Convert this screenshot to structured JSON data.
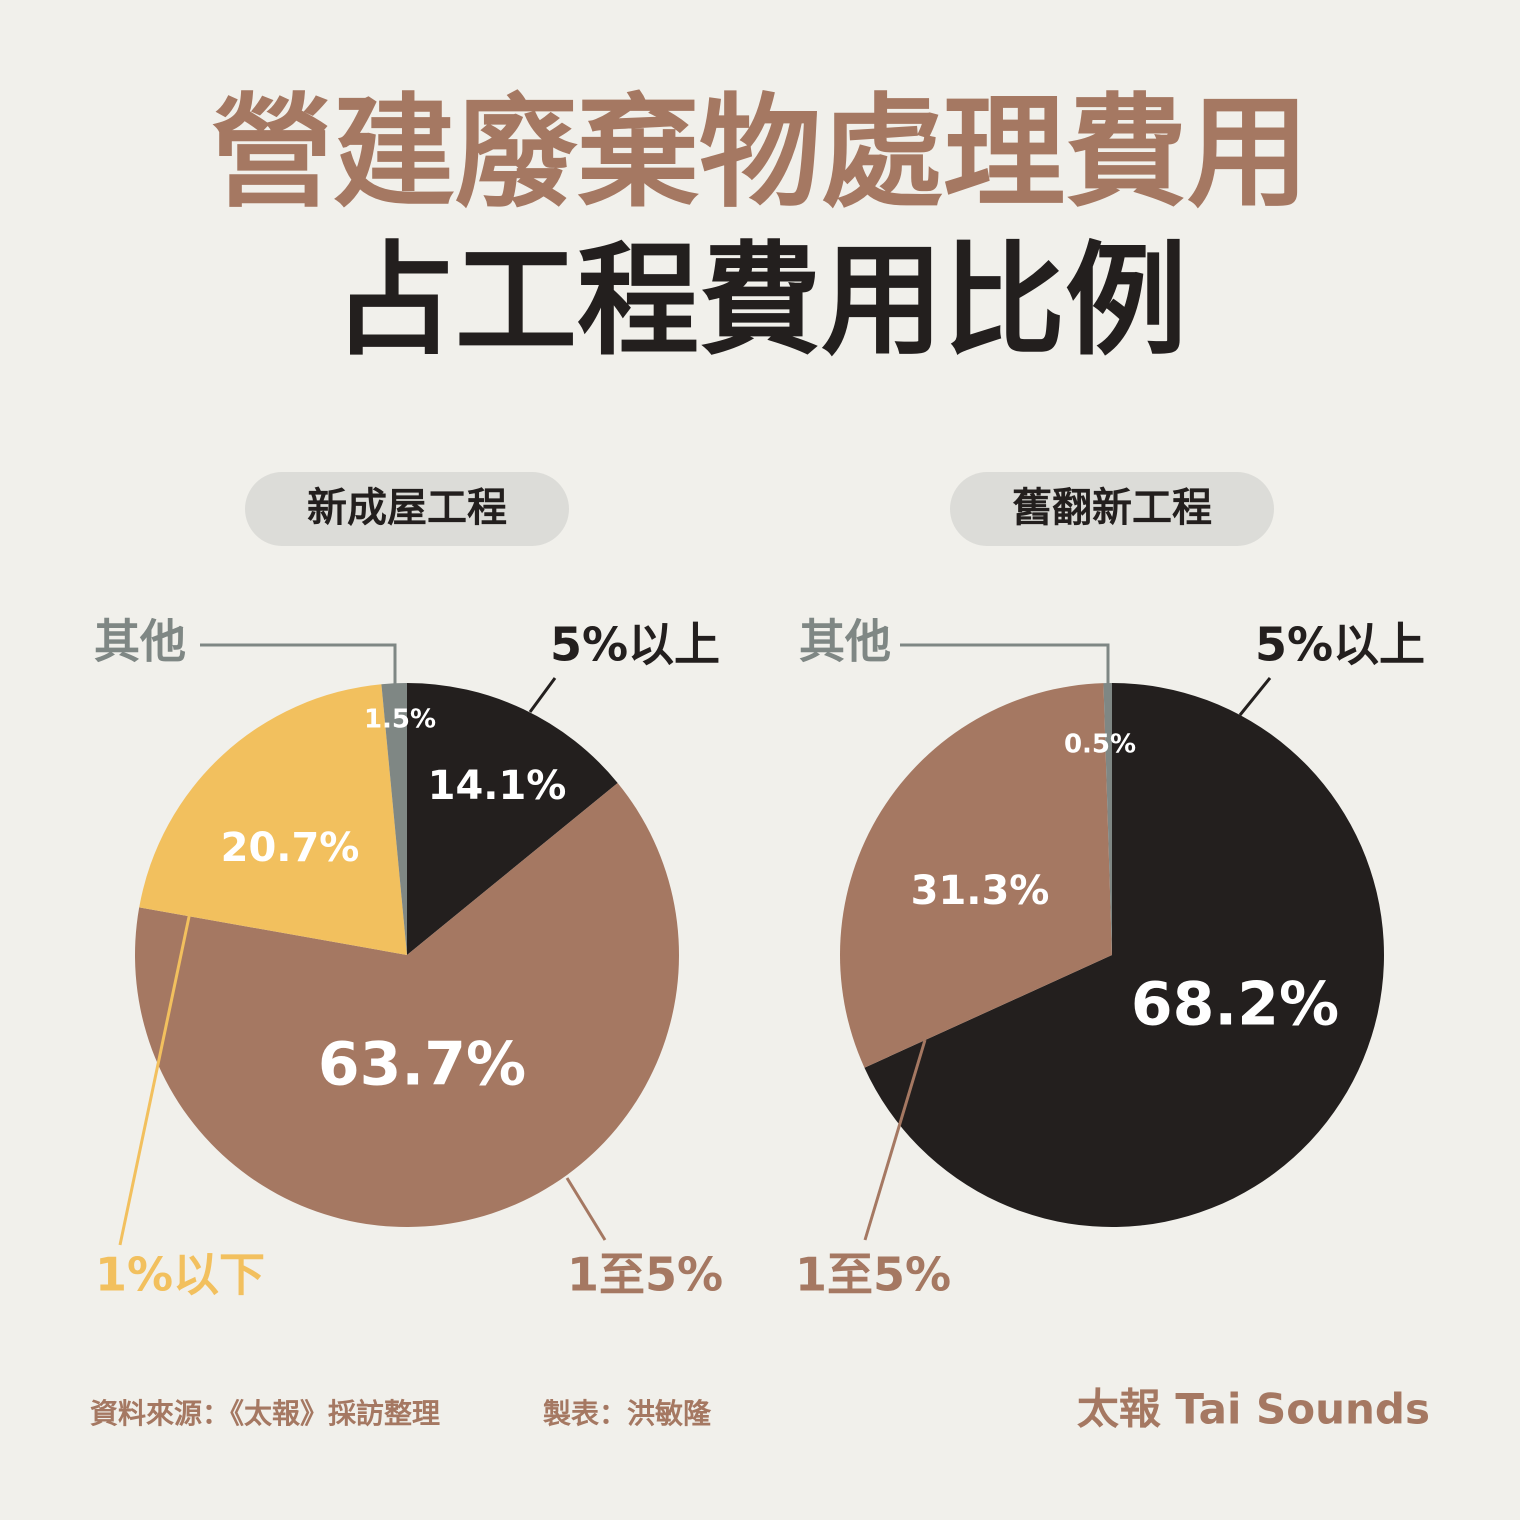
{
  "title": [
    "營建廢棄物處理費用",
    "占工程費用比例"
  ],
  "chart_data": [
    {
      "type": "pie",
      "title": "新成屋工程",
      "categories": [
        "5%以上",
        "1至5%",
        "1%以下",
        "其他"
      ],
      "values": [
        14.1,
        63.7,
        20.7,
        1.5
      ],
      "value_labels": [
        "14.1%",
        "63.7%",
        "20.7%",
        "1.5%"
      ],
      "colors": [
        "#231f1e",
        "#a57862",
        "#f2c05e",
        "#7f8784"
      ]
    },
    {
      "type": "pie",
      "title": "舊翻新工程",
      "categories": [
        "5%以上",
        "1至5%",
        "其他"
      ],
      "values": [
        68.2,
        31.3,
        0.5
      ],
      "value_labels": [
        "68.2%",
        "31.3%",
        "0.5%"
      ],
      "colors": [
        "#231f1e",
        "#a57862",
        "#7f8784"
      ]
    }
  ],
  "source": "資料來源：《太報》採訪整理",
  "maker": "製表：洪敏隆",
  "brand": "太報 Tai Sounds"
}
